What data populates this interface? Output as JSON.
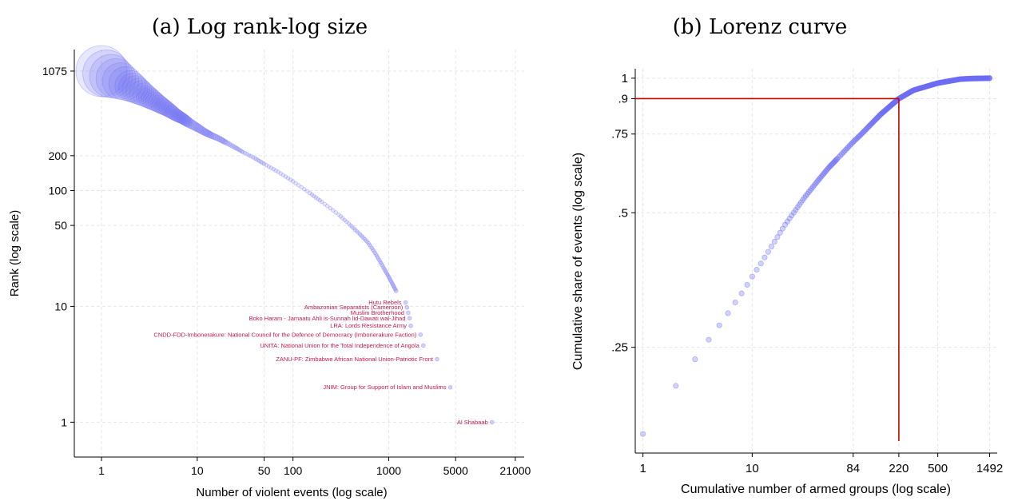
{
  "chart_data": [
    {
      "type": "scatter",
      "title": "(a) Log rank-log size",
      "xlabel": "Number of violent events (log scale)",
      "ylabel": "Rank (log scale)",
      "xscale": "log",
      "yscale": "log",
      "xlim": [
        0.52,
        26000
      ],
      "ylim": [
        0.5,
        1650
      ],
      "xticks": [
        1,
        10,
        50,
        100,
        1000,
        5000,
        21000
      ],
      "xtick_labels": [
        "1",
        "10",
        "50",
        "100",
        "1000",
        "5000",
        "21000"
      ],
      "yticks": [
        1,
        10,
        50,
        100,
        200,
        1075
      ],
      "ytick_labels": [
        "1",
        "10",
        "50",
        "100",
        "200",
        "1075"
      ],
      "grid": true,
      "marker_color": "#6b6bf5",
      "annotation_color": "#c8194e",
      "annotations": [
        {
          "label": "Hutu Rebels",
          "x": 1500,
          "y": 10.8
        },
        {
          "label": "Ambazonian Separatists (Cameroon)",
          "x": 1550,
          "y": 9.8
        },
        {
          "label": "Muslim Brotherhood",
          "x": 1600,
          "y": 8.8
        },
        {
          "label": "Boko Haram - Jamaatu Ahli is-Sunnah lid-Dawati wal-Jihad",
          "x": 1650,
          "y": 7.9
        },
        {
          "label": "LRA: Lords Resistance Army",
          "x": 1700,
          "y": 6.8
        },
        {
          "label": "CNDD-FDD-Imbonerakure: National Council for the Defence of Democracy (Imbonerakure Faction)",
          "x": 2150,
          "y": 5.7
        },
        {
          "label": "UNITA: National Union for the Total Independence of Angola",
          "x": 2300,
          "y": 4.6
        },
        {
          "label": "ZANU-PF: Zimbabwe African National Union-Patriotic Front",
          "x": 3200,
          "y": 3.5
        },
        {
          "label": "JNIM: Group for Support of Islam and Muslims",
          "x": 4400,
          "y": 2.0
        },
        {
          "label": "Al Shabaab",
          "x": 12000,
          "y": 1
        }
      ],
      "series": [
        {
          "x": [
            1,
            2,
            3,
            4,
            5,
            6,
            7,
            8,
            10,
            12,
            14,
            17,
            20,
            25,
            30,
            40,
            50,
            70,
            100,
            150,
            200,
            300,
            400,
            500,
            600,
            700,
            800,
            900,
            1000,
            1100,
            1200
          ],
          "y": [
            1075,
            800,
            650,
            560,
            500,
            450,
            420,
            390,
            350,
            320,
            300,
            280,
            260,
            235,
            215,
            190,
            170,
            145,
            120,
            95,
            80,
            62,
            50,
            42,
            36,
            30,
            25,
            21,
            18,
            15.5,
            13.5
          ],
          "sizes": [
            1075,
            800,
            650,
            560,
            500,
            450,
            420,
            390,
            350,
            320,
            300,
            280,
            260,
            235,
            215,
            190,
            170,
            145,
            120,
            95,
            80,
            62,
            50,
            42,
            36,
            30,
            25,
            21,
            18,
            15.5,
            13.5
          ]
        }
      ]
    },
    {
      "type": "scatter",
      "title": "(b) Lorenz curve",
      "xlabel": "Cumulative number of armed groups (log scale)",
      "ylabel": "Cumulative share of events (log scale)",
      "xscale": "log",
      "yscale": "log",
      "xlim": [
        0.85,
        1750
      ],
      "ylim": [
        0.145,
        1.05
      ],
      "xticks": [
        1,
        10,
        84,
        220,
        500,
        1492
      ],
      "xtick_labels": [
        "1",
        "10",
        "84",
        "220",
        "500",
        "1492"
      ],
      "yticks": [
        0.25,
        0.5,
        0.75,
        0.9,
        1
      ],
      "ytick_labels": [
        ".25",
        ".5",
        ".75",
        ".9",
        "1"
      ],
      "grid": true,
      "marker_color": "#6b6bf5",
      "reference_color": "#cc0000",
      "reference_lines": {
        "x": 220,
        "y": 0.9
      },
      "series": [
        {
          "x": [
            1,
            2,
            3,
            4,
            5,
            6,
            7,
            8,
            9,
            10,
            12,
            15,
            20,
            30,
            40,
            50,
            60,
            84,
            100,
            150,
            220,
            300,
            500,
            800,
            1000,
            1492
          ],
          "y": [
            0.16,
            0.205,
            0.235,
            0.26,
            0.28,
            0.298,
            0.315,
            0.33,
            0.345,
            0.36,
            0.385,
            0.42,
            0.47,
            0.54,
            0.59,
            0.63,
            0.66,
            0.72,
            0.75,
            0.83,
            0.9,
            0.94,
            0.975,
            0.995,
            0.998,
            1
          ]
        }
      ]
    }
  ]
}
